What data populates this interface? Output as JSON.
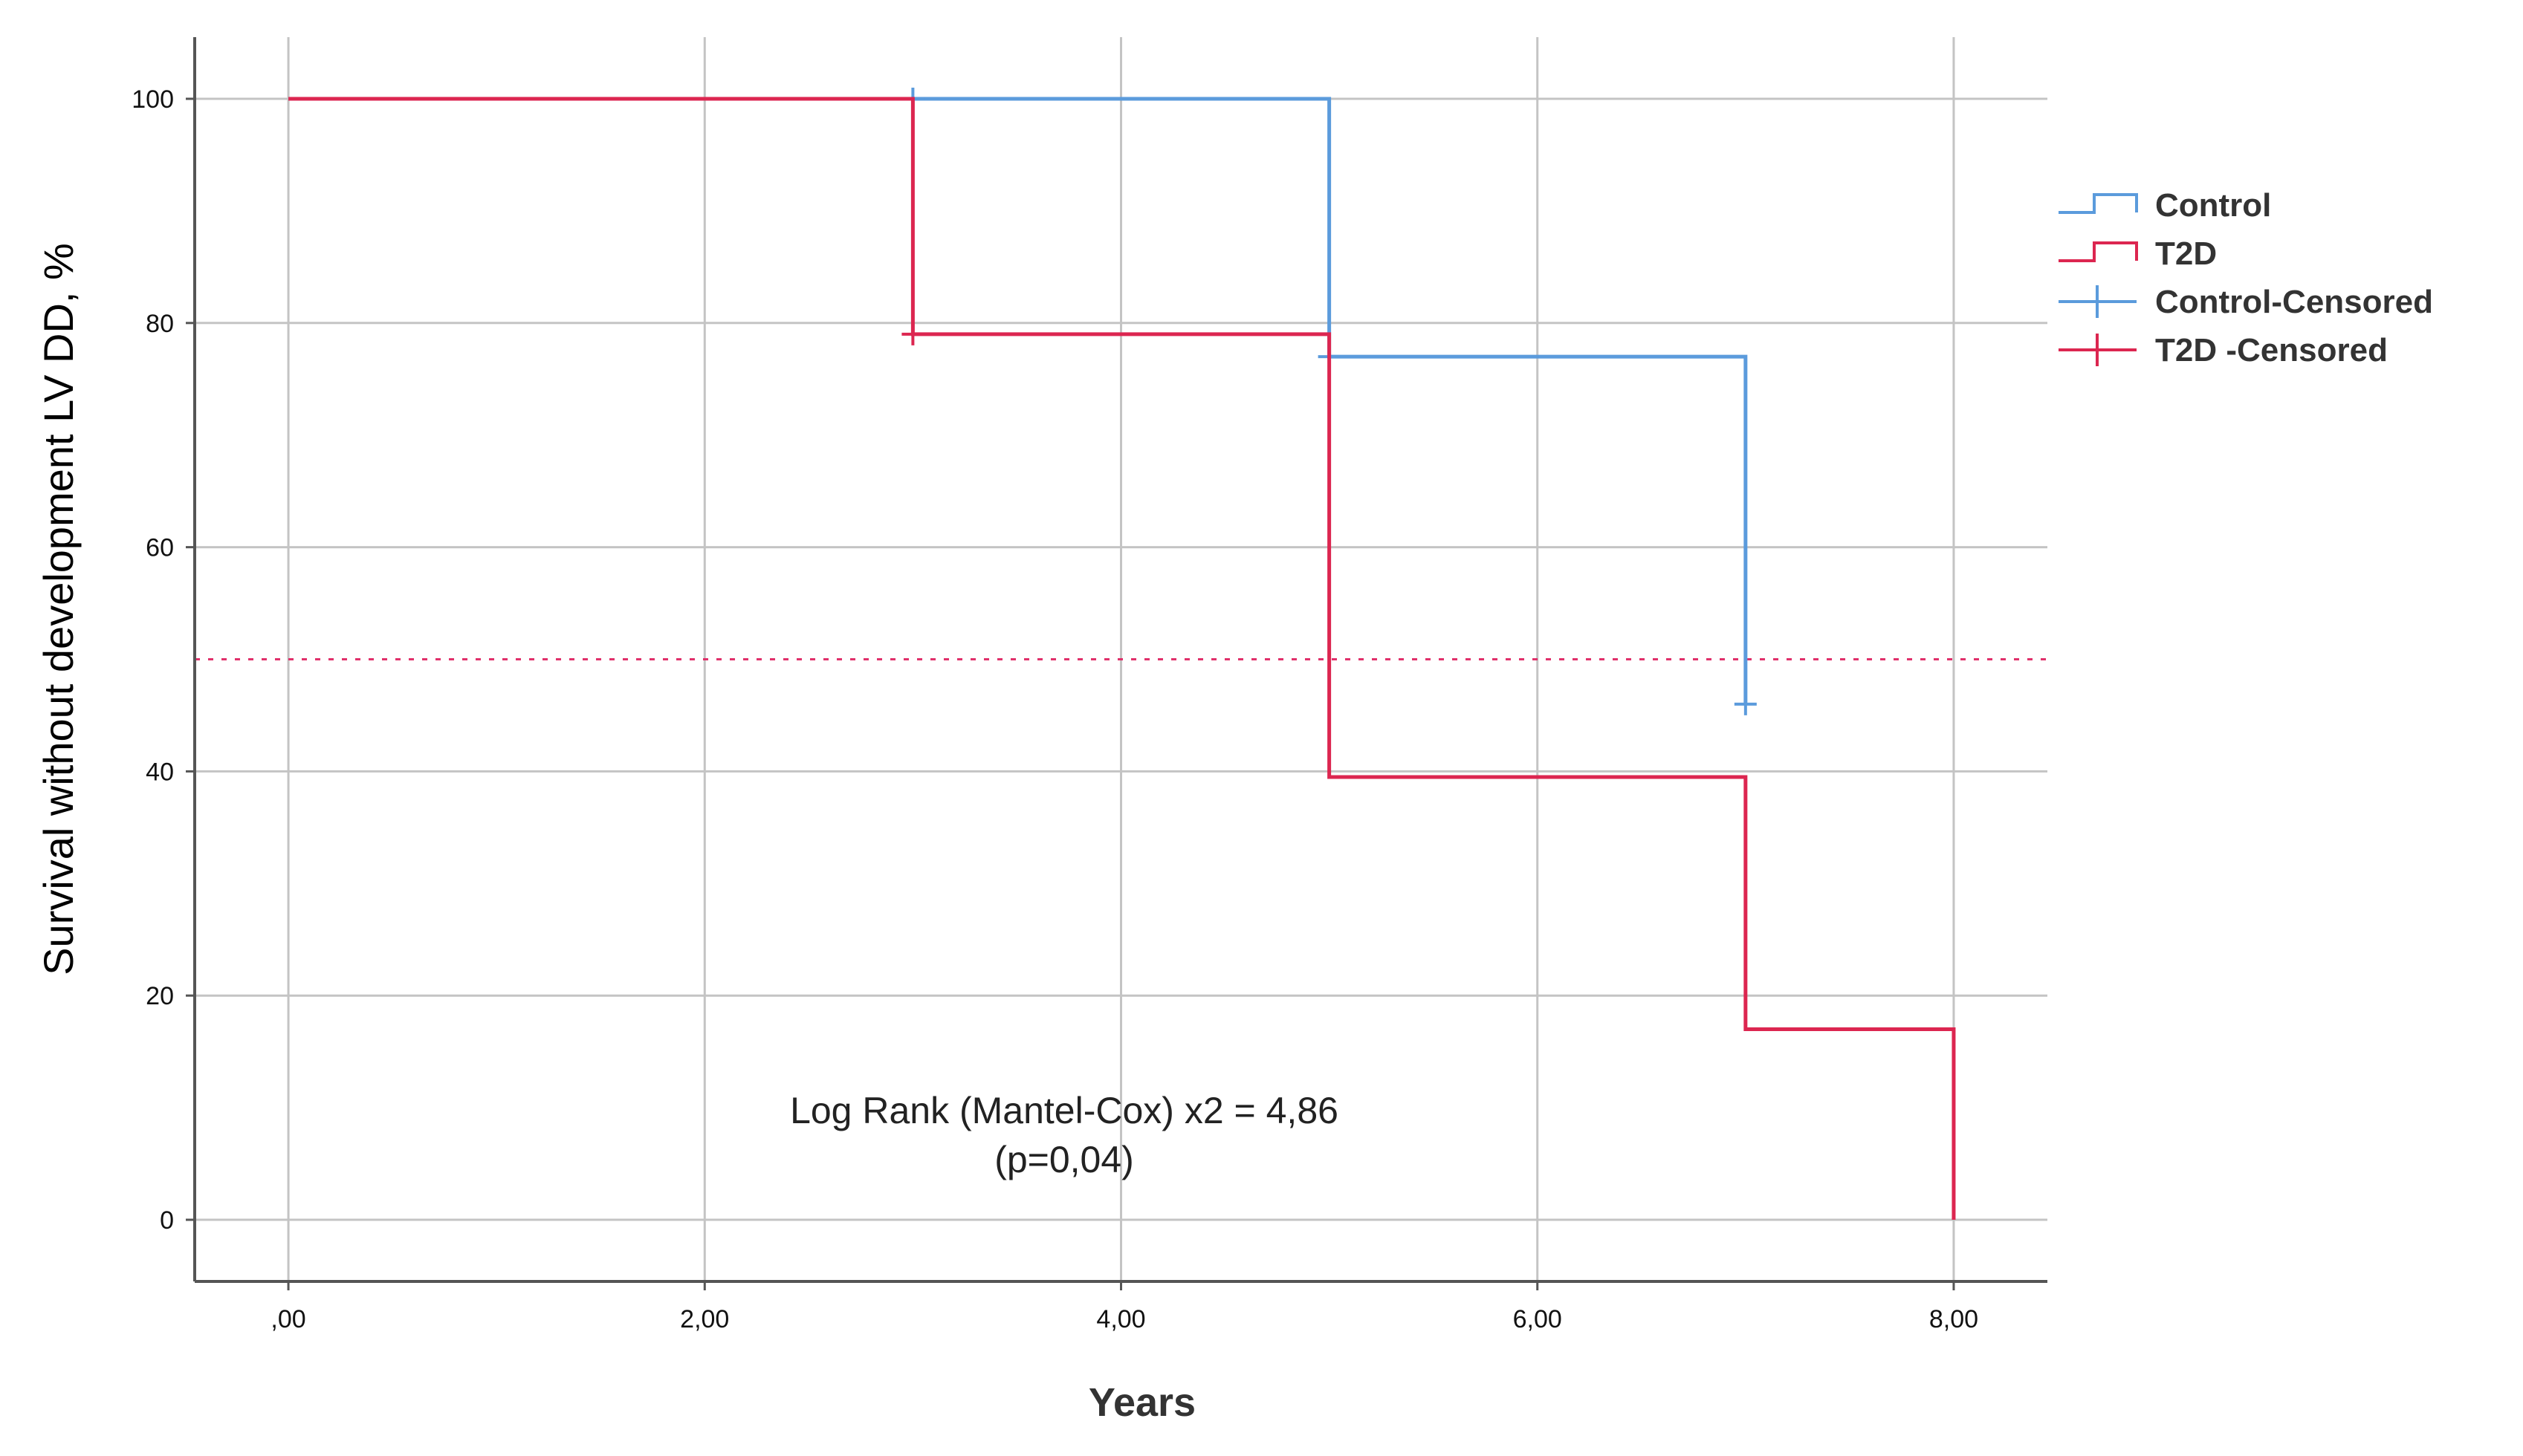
{
  "chart_data": {
    "type": "line",
    "step": true,
    "title": "",
    "xlabel": "Years",
    "ylabel": "Survival without development LV DD, %",
    "xlim": [
      -0.45,
      8.45
    ],
    "ylim": [
      -5.5,
      105.5
    ],
    "x_ticks": [
      {
        "value": 0,
        "label": ",00"
      },
      {
        "value": 2,
        "label": "2,00"
      },
      {
        "value": 4,
        "label": "4,00"
      },
      {
        "value": 6,
        "label": "6,00"
      },
      {
        "value": 8,
        "label": "8,00"
      }
    ],
    "y_ticks": [
      {
        "value": 0,
        "label": "0"
      },
      {
        "value": 20,
        "label": "20"
      },
      {
        "value": 40,
        "label": "40"
      },
      {
        "value": 60,
        "label": "60"
      },
      {
        "value": 80,
        "label": "80"
      },
      {
        "value": 100,
        "label": "100"
      }
    ],
    "grid": true,
    "reference_line": {
      "y": 50,
      "style": "dashed",
      "color": "#e0306a"
    },
    "series": [
      {
        "name": "Control",
        "color": "#5b9bdc",
        "x": [
          0,
          3,
          3,
          5,
          5,
          7,
          7
        ],
        "y": [
          100,
          100,
          100,
          100,
          77,
          77,
          46
        ],
        "censored": [
          {
            "x": 3,
            "y": 100
          },
          {
            "x": 5,
            "y": 77
          },
          {
            "x": 7,
            "y": 46
          }
        ]
      },
      {
        "name": "T2D",
        "color": "#dc2650",
        "x": [
          0,
          3,
          3,
          5,
          5,
          7,
          7,
          8,
          8
        ],
        "y": [
          100,
          100,
          79,
          79,
          39.5,
          39.5,
          17,
          17,
          0
        ],
        "censored": [
          {
            "x": 3,
            "y": 79
          }
        ]
      }
    ],
    "legend": {
      "position": "right",
      "entries": [
        {
          "label": "Control",
          "kind": "line",
          "color": "#5b9bdc"
        },
        {
          "label": "T2D",
          "kind": "line",
          "color": "#dc2650"
        },
        {
          "label": "Control-Censored",
          "kind": "censor",
          "color": "#5b9bdc"
        },
        {
          "label": "T2D    -Censored",
          "kind": "censor",
          "color": "#dc2650"
        }
      ]
    },
    "annotations": [
      {
        "text": "Log Rank (Mantel-Cox) x2 = 4,86",
        "x": 4.7,
        "y": 9
      },
      {
        "text": "(p=0,04)",
        "x": 4.7,
        "y": 5
      }
    ]
  }
}
